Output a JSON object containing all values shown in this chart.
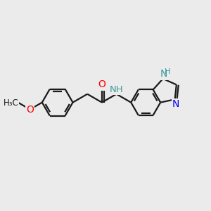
{
  "background_color": "#ebebeb",
  "bond_color": "#1a1a1a",
  "nitrogen_color": "#0000ff",
  "oxygen_color": "#ff0000",
  "nh_color": "#3d9999",
  "line_width": 1.6,
  "font_size": 10,
  "fig_size": [
    3.0,
    3.0
  ],
  "dpi": 100,
  "xlim": [
    0,
    10
  ],
  "ylim": [
    0,
    10
  ]
}
